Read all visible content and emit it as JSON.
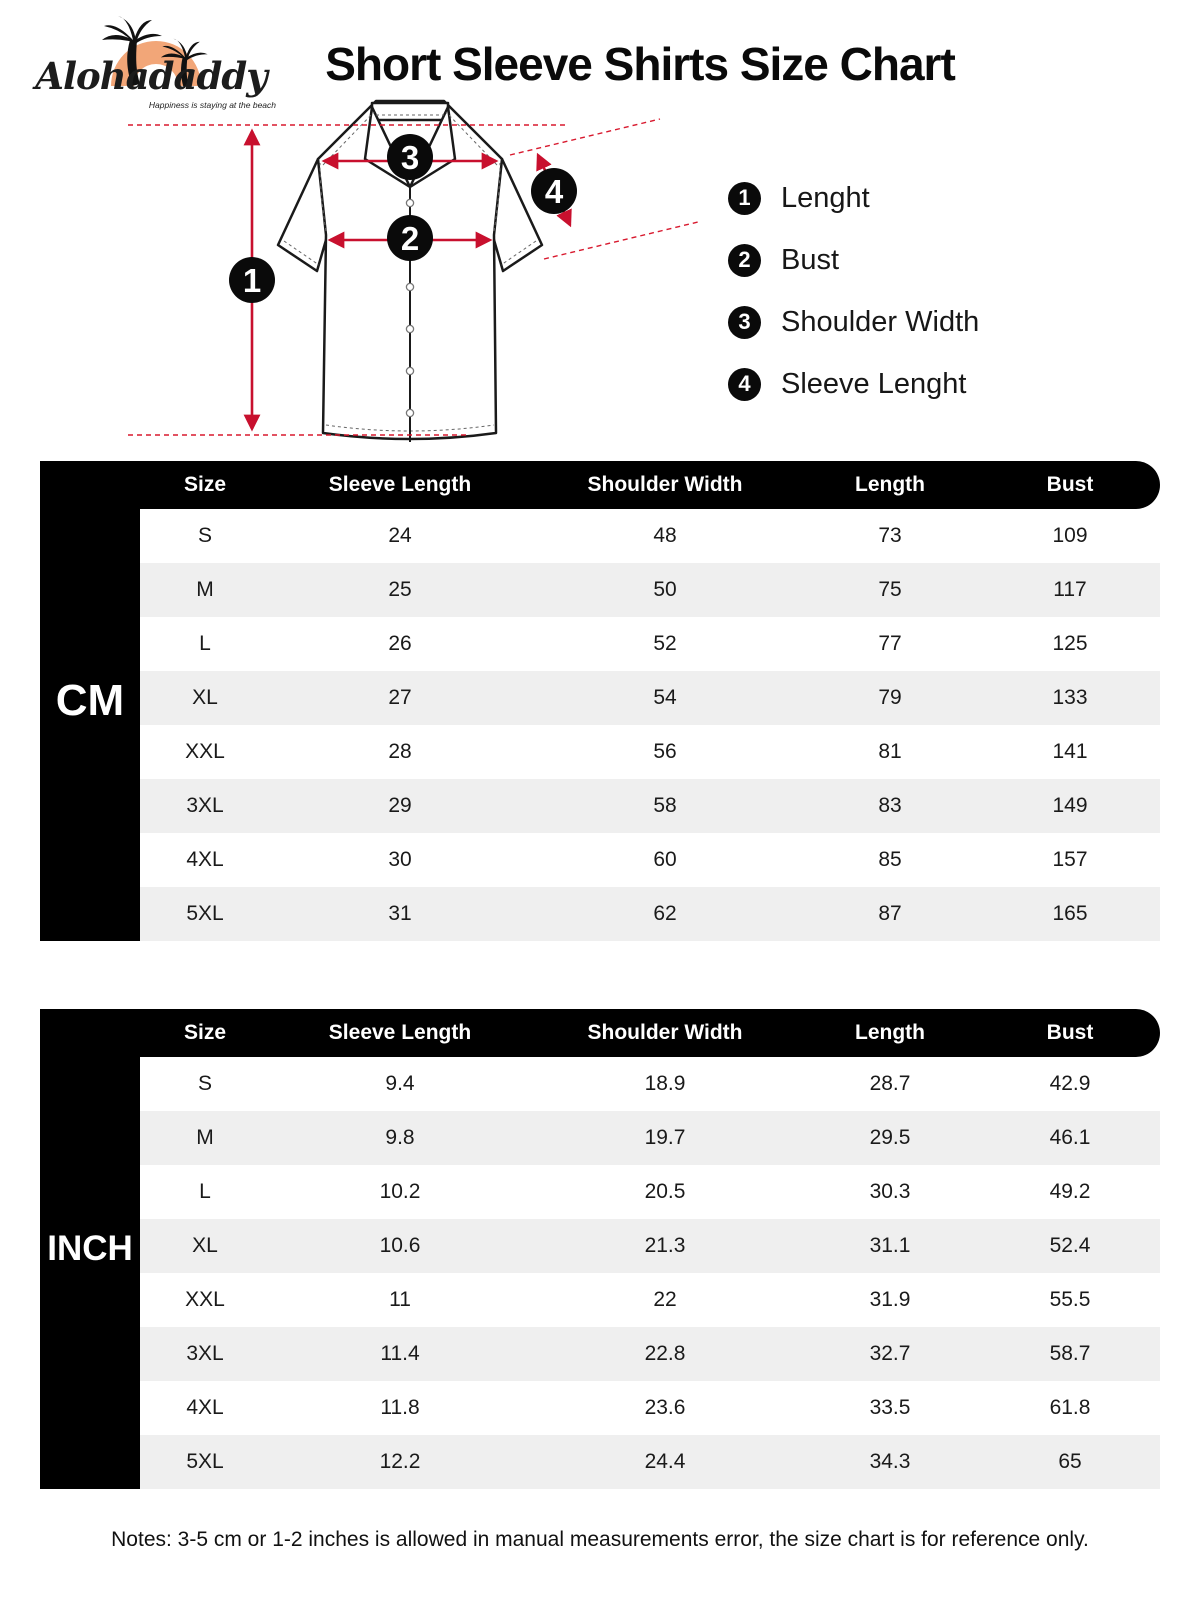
{
  "brand": {
    "name": "Alohadaddy",
    "tagline": "Happiness is staying at the beach"
  },
  "page_title": "Short Sleeve Shirts Size Chart",
  "diagram": {
    "markers": [
      "1",
      "2",
      "3",
      "4"
    ],
    "legend": [
      {
        "num": "1",
        "label": "Lenght"
      },
      {
        "num": "2",
        "label": "Bust"
      },
      {
        "num": "3",
        "label": "Shoulder Width"
      },
      {
        "num": "4",
        "label": "Sleeve Lenght"
      }
    ]
  },
  "tables": [
    {
      "unit": "CM",
      "columns": [
        "Size",
        "Sleeve Length",
        "Shoulder Width",
        "Length",
        "Bust"
      ],
      "rows": [
        [
          "S",
          "24",
          "48",
          "73",
          "109"
        ],
        [
          "M",
          "25",
          "50",
          "75",
          "117"
        ],
        [
          "L",
          "26",
          "52",
          "77",
          "125"
        ],
        [
          "XL",
          "27",
          "54",
          "79",
          "133"
        ],
        [
          "XXL",
          "28",
          "56",
          "81",
          "141"
        ],
        [
          "3XL",
          "29",
          "58",
          "83",
          "149"
        ],
        [
          "4XL",
          "30",
          "60",
          "85",
          "157"
        ],
        [
          "5XL",
          "31",
          "62",
          "87",
          "165"
        ]
      ]
    },
    {
      "unit": "INCH",
      "columns": [
        "Size",
        "Sleeve Length",
        "Shoulder Width",
        "Length",
        "Bust"
      ],
      "rows": [
        [
          "S",
          "9.4",
          "18.9",
          "28.7",
          "42.9"
        ],
        [
          "M",
          "9.8",
          "19.7",
          "29.5",
          "46.1"
        ],
        [
          "L",
          "10.2",
          "20.5",
          "30.3",
          "49.2"
        ],
        [
          "XL",
          "10.6",
          "21.3",
          "31.1",
          "52.4"
        ],
        [
          "XXL",
          "11",
          "22",
          "31.9",
          "55.5"
        ],
        [
          "3XL",
          "11.4",
          "22.8",
          "32.7",
          "58.7"
        ],
        [
          "4XL",
          "11.8",
          "23.6",
          "33.5",
          "61.8"
        ],
        [
          "5XL",
          "12.2",
          "24.4",
          "34.3",
          "65"
        ]
      ]
    }
  ],
  "notes": "Notes: 3-5 cm or 1-2 inches is allowed in manual measurements error, the size chart is for reference only.",
  "colors": {
    "accent_red": "#c8102e",
    "logo_orange": "#f2a678",
    "header_bg": "#000000",
    "row_alt": "#efefef"
  }
}
